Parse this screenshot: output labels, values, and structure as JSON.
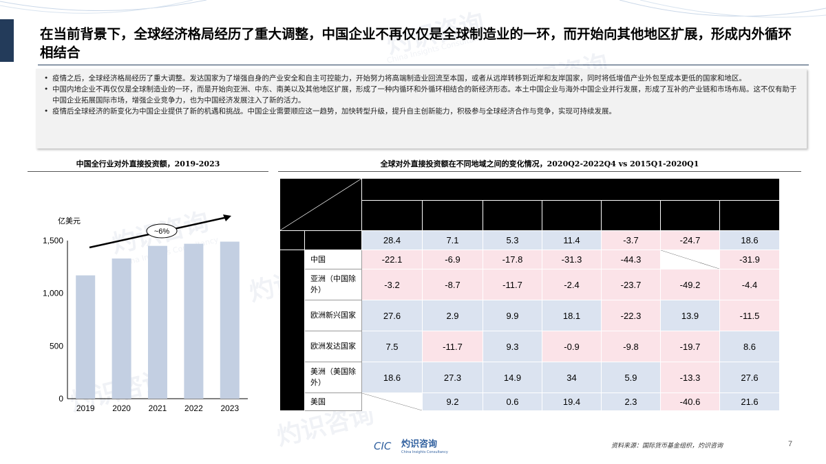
{
  "title": "在当前背景下，全球经济格局经历了重大调整，中国企业不再仅仅是全球制造业的一环，而开始向其他地区扩展，形成内外循环相结合",
  "bullets": [
    "疫情之后，全球经济格局经历了重大调整。发达国家为了增强自身的产业安全和自主可控能力，开始努力将高端制造业回流至本国，或者从远岸转移到近岸和友岸国家，同时将低增值产业外包至成本更低的国家和地区。",
    "中国内地企业不再仅仅是全球制造业的一环，而是开始向亚洲、中东、南美以及其他地区扩展，形成了一种内循环和外循环相结合的新经济形态。本土中国企业与海外中国企业并行发展，形成了互补的产业链和市场布局。这不仅有助于中国企业拓展国际市场，增强企业竞争力，也为中国经济发展注入了新的活力。",
    "疫情后全球经济的新变化为中国企业提供了新的机遇和挑战。中国企业需要顺应这一趋势，加快转型升级，提升自主创新能力，积极参与全球经济合作与竞争，实现可持续发展。"
  ],
  "left_chart_title": "中国全行业对外直接投资额，2019-2023",
  "right_table_title": "全球对外直接投资额在不同地域之间的变化情况，2020Q2-2022Q4 vs 2015Q1-2020Q1",
  "chart_data": {
    "type": "bar",
    "categories": [
      "2019",
      "2020",
      "2021",
      "2022",
      "2023"
    ],
    "values": [
      1170,
      1330,
      1450,
      1470,
      1490
    ],
    "ylabel": "亿美元",
    "ylim": [
      0,
      1500
    ],
    "yticks": [
      "0",
      "500",
      "1,000",
      "1,500"
    ],
    "annotation": "~6%",
    "bar_color": "#c3cfe2"
  },
  "table": {
    "top_row": [
      "28.4",
      "7.1",
      "5.3",
      "11.4",
      "-3.7",
      "-24.7",
      "18.6"
    ],
    "rows": [
      {
        "label": "中国",
        "values": [
          "-22.1",
          "-6.9",
          "-17.8",
          "-31.3",
          "-44.3",
          "",
          "-31.9"
        ]
      },
      {
        "label": "亚洲（中国除外）",
        "values": [
          "-3.2",
          "-8.7",
          "-11.7",
          "-2.4",
          "-23.7",
          "-49.2",
          "-4.4"
        ]
      },
      {
        "label": "欧洲新兴国家",
        "values": [
          "27.6",
          "2.9",
          "9.9",
          "18.1",
          "-22.3",
          "13.9",
          "-11.5"
        ]
      },
      {
        "label": "欧洲发达国家",
        "values": [
          "7.5",
          "-11.7",
          "9.3",
          "-0.9",
          "-9.8",
          "-19.7",
          "8.6"
        ]
      },
      {
        "label": "美洲（美国除外）",
        "values": [
          "18.6",
          "27.3",
          "14.9",
          "34",
          "5.9",
          "-13.3",
          "27.6"
        ]
      },
      {
        "label": "美国",
        "values": [
          "",
          "9.2",
          "0.6",
          "19.4",
          "2.3",
          "-40.6",
          "21.6"
        ]
      }
    ]
  },
  "colors": {
    "negative_cell": "#fbe3e8",
    "positive_cell": "#dbe3f0",
    "header": "#000000",
    "title_accent": "#233b5a"
  },
  "footer": {
    "logo_text": "灼识咨询",
    "logo_mark": "CIC",
    "logo_sub": "China Insights Consultancy",
    "source": "资料来源：国际货币基金组织，灼识咨询",
    "page": "7"
  },
  "watermark": {
    "cn": "灼识咨询",
    "en": "China Insights Consultancy",
    "mark": "CIC"
  }
}
